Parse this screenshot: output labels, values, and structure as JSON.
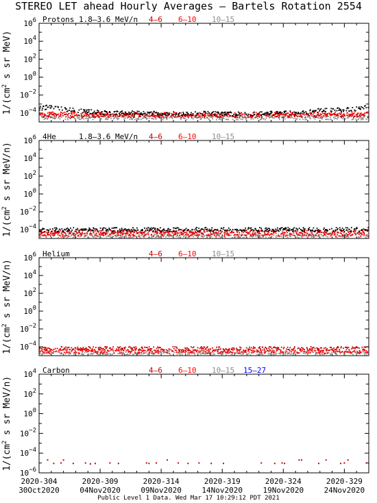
{
  "title": "STEREO LET ahead Hourly Averages – Bartels Rotation 2554",
  "footer": "Public Level 1 Data. Wed Mar 17 10:29:12 PDT 2021",
  "colors": {
    "black": "#000000",
    "red": "#ff0000",
    "darkred": "#c00000",
    "gray": "#8c8c8c",
    "blue": "#0000ff"
  },
  "x_ticks": [
    {
      "doy": "2020-304",
      "date": "30Oct2020"
    },
    {
      "doy": "2020-309",
      "date": "04Nov2020"
    },
    {
      "doy": "2020-314",
      "date": "09Nov2020"
    },
    {
      "doy": "2020-319",
      "date": "14Nov2020"
    },
    {
      "doy": "2020-324",
      "date": "19Nov2020"
    },
    {
      "doy": "2020-329",
      "date": "24Nov2020"
    }
  ],
  "panels": [
    {
      "species": "Protons",
      "energy": "1.8–3.6 MeV/n",
      "ylabel": "1/(cm² s sr MeV)",
      "legend": [
        {
          "label": "4–6",
          "color": "darkred"
        },
        {
          "label": "6–10",
          "color": "red"
        },
        {
          "label": "10–15",
          "color": "gray"
        }
      ],
      "ytick_labels": [
        "10^6",
        "10^4",
        "10^2",
        "10^0",
        "10^-2",
        "10^-4"
      ]
    },
    {
      "species": "4He",
      "energy": "1.8–3.6 MeV/n",
      "ylabel": "1/(cm² s sr MeV/n)",
      "legend": [
        {
          "label": "4–6",
          "color": "darkred"
        },
        {
          "label": "6–10",
          "color": "red"
        },
        {
          "label": "10–15",
          "color": "gray"
        }
      ],
      "ytick_labels": [
        "10^6",
        "10^4",
        "10^2",
        "10^0",
        "10^-2",
        "10^-4"
      ]
    },
    {
      "species": "Helium",
      "energy": "",
      "ylabel": "1/(cm² s sr MeV/n)",
      "legend": [
        {
          "label": "4–6",
          "color": "darkred"
        },
        {
          "label": "6–10",
          "color": "red"
        },
        {
          "label": "10–15",
          "color": "gray"
        }
      ],
      "ytick_labels": [
        "10^6",
        "10^4",
        "10^2",
        "10^0",
        "10^-2",
        "10^-4"
      ]
    },
    {
      "species": "Carbon",
      "energy": "",
      "ylabel": "1/(cm² s sr MeV/n)",
      "legend": [
        {
          "label": "4–6",
          "color": "darkred"
        },
        {
          "label": "6–10",
          "color": "red"
        },
        {
          "label": "10–15",
          "color": "gray"
        },
        {
          "label": "15–27",
          "color": "blue"
        }
      ],
      "ytick_labels": [
        "10^4",
        "10^2",
        "10^0",
        "10^-2",
        "10^-4",
        "10^-6"
      ]
    }
  ],
  "chart_data": [
    {
      "type": "scatter",
      "title": "Protons 1.8–3.6 MeV/n",
      "xlabel": "",
      "ylabel": "1/(cm² s sr MeV)",
      "x_range": [
        304,
        331
      ],
      "yscale": "log",
      "ylim": [
        1e-05,
        1000000.0
      ],
      "series": [
        {
          "name": "1.8–3.6 MeV/n",
          "color": "black",
          "x": [
            304.0,
            304.5,
            305.0,
            305.5,
            306.0,
            307.0,
            308.0,
            309.0,
            310.0,
            312.0,
            314.0,
            316.0,
            318.0,
            320.0,
            322.0,
            324.0,
            326.0,
            327.0,
            328.0,
            329.0,
            330.0,
            331.0
          ],
          "y": [
            0.0003,
            0.0004,
            0.0006,
            0.0004,
            0.00025,
            0.0002,
            0.00015,
            0.00012,
            0.0001,
            0.0001,
            9e-05,
            9e-05,
            9e-05,
            8e-05,
            9e-05,
            0.0001,
            0.00012,
            0.0002,
            0.00022,
            0.00025,
            0.0003,
            0.0005
          ]
        },
        {
          "name": "4–6",
          "color": "darkred",
          "x": [
            304,
            308,
            312,
            316,
            320,
            324,
            328,
            331
          ],
          "y": [
            5e-05,
            5e-05,
            5e-05,
            5e-05,
            5e-05,
            5e-05,
            5e-05,
            5e-05
          ]
        },
        {
          "name": "6–10",
          "color": "red",
          "x": [
            304,
            308,
            312,
            316,
            320,
            324,
            328,
            331
          ],
          "y": [
            8e-05,
            7e-05,
            7e-05,
            7e-05,
            7e-05,
            7e-05,
            8e-05,
            8e-05
          ]
        },
        {
          "name": "10–15",
          "color": "gray",
          "x": [
            304,
            308,
            312,
            316,
            320,
            324,
            328,
            331
          ],
          "y": [
            3e-05,
            3e-05,
            3e-05,
            3e-05,
            3e-05,
            3e-05,
            3e-05,
            3e-05
          ]
        }
      ]
    },
    {
      "type": "scatter",
      "title": "4He 1.8–3.6 MeV/n",
      "xlabel": "",
      "ylabel": "1/(cm² s sr MeV/n)",
      "x_range": [
        304,
        331
      ],
      "yscale": "log",
      "ylim": [
        1e-05,
        1000000.0
      ],
      "series": [
        {
          "name": "1.8–3.6 MeV/n",
          "color": "black",
          "x": [
            304,
            308,
            312,
            316,
            320,
            324,
            328,
            331
          ],
          "y": [
            0.0001,
            0.0001,
            0.0001,
            0.0001,
            0.0001,
            0.0001,
            0.0001,
            0.0001
          ]
        },
        {
          "name": "4–6",
          "color": "darkred",
          "x": [
            304,
            308,
            312,
            316,
            320,
            324,
            328,
            331
          ],
          "y": [
            6e-05,
            6e-05,
            6e-05,
            6e-05,
            6e-05,
            6e-05,
            6e-05,
            6e-05
          ]
        },
        {
          "name": "6–10",
          "color": "red",
          "x": [
            304,
            308,
            312,
            316,
            320,
            324,
            328,
            331
          ],
          "y": [
            3e-05,
            3e-05,
            3e-05,
            3e-05,
            3e-05,
            3e-05,
            3e-05,
            3e-05
          ]
        },
        {
          "name": "10–15",
          "color": "gray",
          "x": [
            304,
            308,
            312,
            316,
            320,
            324,
            328,
            331
          ],
          "y": [
            2e-05,
            2e-05,
            2e-05,
            2e-05,
            2e-05,
            2e-05,
            2e-05,
            2e-05
          ]
        }
      ]
    },
    {
      "type": "scatter",
      "title": "Helium",
      "xlabel": "",
      "ylabel": "1/(cm² s sr MeV/n)",
      "x_range": [
        304,
        331
      ],
      "yscale": "log",
      "ylim": [
        1e-05,
        1000000.0
      ],
      "series": [
        {
          "name": "4–6",
          "color": "darkred",
          "x": [
            304,
            308,
            312,
            316,
            320,
            324,
            328,
            331
          ],
          "y": [
            6e-05,
            6e-05,
            6e-05,
            6e-05,
            6e-05,
            6e-05,
            6e-05,
            6e-05
          ]
        },
        {
          "name": "6–10",
          "color": "red",
          "x": [
            304,
            308,
            312,
            316,
            320,
            324,
            328,
            331
          ],
          "y": [
            3e-05,
            3e-05,
            3e-05,
            3e-05,
            3e-05,
            3e-05,
            3e-05,
            3e-05
          ]
        },
        {
          "name": "10–15",
          "color": "gray",
          "x": [
            304,
            308,
            312,
            316,
            320,
            324,
            328,
            331
          ],
          "y": [
            2e-05,
            2e-05,
            2e-05,
            2e-05,
            2e-05,
            2e-05,
            2e-05,
            2e-05
          ]
        }
      ]
    },
    {
      "type": "scatter",
      "title": "Carbon",
      "xlabel": "",
      "ylabel": "1/(cm² s sr MeV/n)",
      "x_range": [
        304,
        331
      ],
      "yscale": "log",
      "ylim": [
        1e-06,
        10000.0
      ],
      "series": [
        {
          "name": "4–6",
          "color": "darkred",
          "x": [
            304.7,
            305.2,
            305.8,
            306.0,
            306.8,
            307.8,
            308.2,
            308.6,
            309.8,
            310.5,
            312.8,
            313.0,
            313.6,
            314.5,
            315.4,
            316.2,
            317.1,
            318.1,
            319.1,
            322.2,
            323.3,
            323.9,
            324.1,
            325.3,
            325.5,
            326.9,
            327.5,
            328.7,
            329.0,
            329.3,
            330.8,
            331.0
          ],
          "y": [
            2e-05,
            9e-06,
            1e-05,
            2e-05,
            9e-06,
            1e-05,
            8e-06,
            9e-06,
            1e-05,
            9e-06,
            1e-05,
            9e-06,
            1e-05,
            2e-05,
            1e-05,
            9e-06,
            1e-05,
            9e-06,
            9e-06,
            1e-05,
            9e-06,
            1e-05,
            9e-06,
            2e-05,
            2e-05,
            9e-06,
            2e-05,
            9e-06,
            1e-05,
            2e-05,
            1e-05,
            9e-06
          ]
        }
      ]
    }
  ]
}
